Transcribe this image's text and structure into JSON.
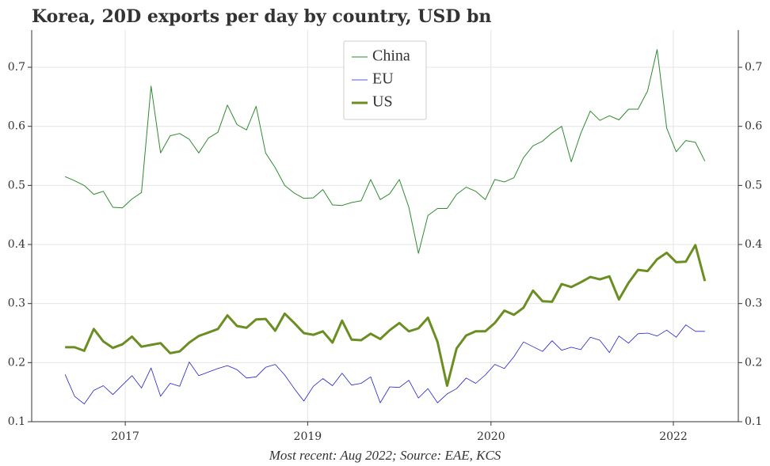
{
  "chart_data": {
    "type": "line",
    "title": "Korea, 20D exports per day by country, USD bn",
    "caption": "Most recent: Aug 2022; Source: EAE, KCS",
    "x": [
      0,
      1,
      2,
      3,
      4,
      5,
      6,
      7,
      8,
      9,
      10,
      11,
      12,
      13,
      14,
      15,
      16,
      17,
      18,
      19,
      20,
      21,
      22,
      23,
      24,
      25,
      26,
      27,
      28,
      29,
      30,
      31,
      32,
      33,
      34,
      35,
      36,
      37,
      38,
      39,
      40,
      41,
      42,
      43,
      44,
      45,
      46,
      47,
      48,
      49,
      50,
      51,
      52,
      53,
      54,
      55,
      56,
      57,
      58,
      59,
      60,
      61,
      62,
      63,
      64,
      65,
      66,
      67
    ],
    "series": [
      {
        "name": "China",
        "color": "#2e8b2e",
        "width": 1,
        "values": [
          0.515,
          0.508,
          0.5,
          0.485,
          0.49,
          0.463,
          0.462,
          0.477,
          0.488,
          0.668,
          0.555,
          0.584,
          0.588,
          0.578,
          0.555,
          0.58,
          0.59,
          0.636,
          0.603,
          0.594,
          0.634,
          0.555,
          0.53,
          0.5,
          0.487,
          0.478,
          0.479,
          0.493,
          0.467,
          0.466,
          0.471,
          0.474,
          0.51,
          0.476,
          0.486,
          0.51,
          0.463,
          0.385,
          0.449,
          0.461,
          0.461,
          0.485,
          0.497,
          0.49,
          0.476,
          0.51,
          0.506,
          0.513,
          0.547,
          0.567,
          0.575,
          0.589,
          0.6,
          0.54,
          0.588,
          0.626,
          0.61,
          0.618,
          0.611,
          0.629,
          0.629,
          0.66,
          0.73,
          0.597,
          0.557,
          0.576,
          0.573,
          0.541
        ]
      },
      {
        "name": "EU",
        "color": "#2020d0",
        "width": 0.8,
        "values": [
          0.18,
          0.143,
          0.13,
          0.153,
          0.161,
          0.146,
          0.162,
          0.178,
          0.157,
          0.191,
          0.143,
          0.165,
          0.16,
          0.201,
          0.178,
          0.184,
          0.19,
          0.195,
          0.188,
          0.174,
          0.176,
          0.192,
          0.197,
          0.179,
          0.156,
          0.135,
          0.16,
          0.173,
          0.161,
          0.182,
          0.162,
          0.165,
          0.176,
          0.132,
          0.159,
          0.158,
          0.17,
          0.14,
          0.156,
          0.132,
          0.147,
          0.156,
          0.174,
          0.165,
          0.179,
          0.197,
          0.19,
          0.21,
          0.235,
          0.227,
          0.219,
          0.237,
          0.221,
          0.226,
          0.222,
          0.243,
          0.238,
          0.217,
          0.245,
          0.233,
          0.249,
          0.25,
          0.245,
          0.255,
          0.243,
          0.264,
          0.253,
          0.253
        ]
      },
      {
        "name": "US",
        "color": "#6b8e23",
        "width": 3,
        "values": [
          0.226,
          0.226,
          0.22,
          0.257,
          0.236,
          0.225,
          0.231,
          0.244,
          0.227,
          0.23,
          0.233,
          0.216,
          0.219,
          0.234,
          0.245,
          0.251,
          0.257,
          0.28,
          0.262,
          0.259,
          0.273,
          0.274,
          0.254,
          0.283,
          0.267,
          0.25,
          0.247,
          0.253,
          0.234,
          0.271,
          0.239,
          0.238,
          0.249,
          0.24,
          0.255,
          0.267,
          0.253,
          0.258,
          0.276,
          0.235,
          0.161,
          0.224,
          0.246,
          0.253,
          0.253,
          0.267,
          0.288,
          0.281,
          0.293,
          0.322,
          0.304,
          0.303,
          0.333,
          0.328,
          0.336,
          0.345,
          0.341,
          0.346,
          0.307,
          0.335,
          0.357,
          0.355,
          0.375,
          0.386,
          0.37,
          0.371,
          0.399,
          0.338
        ]
      }
    ],
    "xlim": [
      -3.5,
      70.5
    ],
    "xticks": [
      {
        "value": 6.3,
        "label": "2017"
      },
      {
        "value": 25.4,
        "label": "2019"
      },
      {
        "value": 44.6,
        "label": "2020"
      },
      {
        "value": 63.7,
        "label": "2022"
      }
    ],
    "ylim": [
      0.1,
      0.763
    ],
    "yticks": [
      0.1,
      0.2,
      0.3,
      0.4,
      0.5,
      0.6,
      0.7
    ],
    "grid": true,
    "legend": "upper center"
  }
}
